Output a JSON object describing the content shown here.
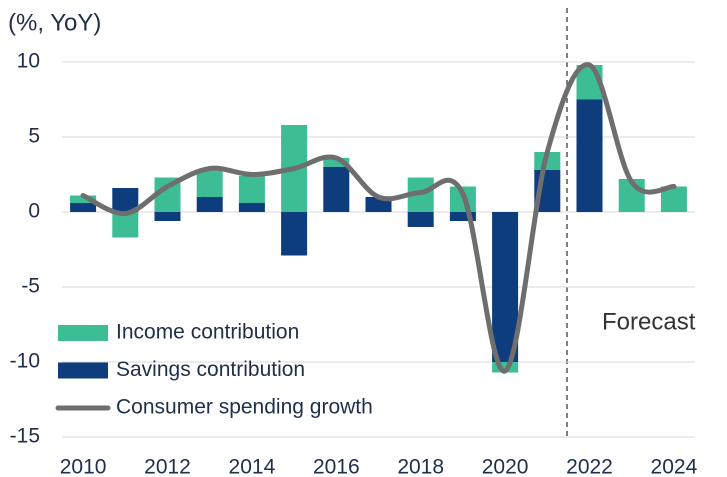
{
  "chart_data": {
    "type": "bar",
    "stacked": true,
    "ylabel": "(%, YoY)",
    "annotation": "Forecast",
    "categories": [
      "2010",
      null,
      "2012",
      null,
      "2014",
      null,
      "2016",
      null,
      "2018",
      null,
      "2020",
      null,
      "2022",
      null,
      "2024"
    ],
    "series": [
      {
        "name": "Income contribution",
        "color": "#3dbd96",
        "values": [
          0.5,
          -1.7,
          2.3,
          1.8,
          1.8,
          5.8,
          0.6,
          0,
          2.3,
          1.7,
          -0.7,
          1.2,
          2.3,
          2.2,
          1.7
        ]
      },
      {
        "name": "Savings contribution",
        "color": "#0d3d7c",
        "values": [
          0.6,
          1.6,
          -0.6,
          1.0,
          0.6,
          -2.9,
          3.0,
          1.0,
          -1.0,
          -0.6,
          -10.0,
          2.8,
          7.5,
          0,
          0
        ]
      },
      {
        "name": "Consumer spending growth",
        "type": "line",
        "color": "#6e6e6e",
        "values": [
          1.1,
          -0.1,
          1.7,
          2.9,
          2.5,
          2.9,
          3.6,
          1.0,
          1.3,
          1.2,
          -10.6,
          4.0,
          9.8,
          2.0,
          1.7
        ]
      }
    ],
    "ylim": [
      -15,
      10
    ],
    "yticks": [
      -15,
      -10,
      -5,
      0,
      5,
      10
    ],
    "grid": true
  }
}
